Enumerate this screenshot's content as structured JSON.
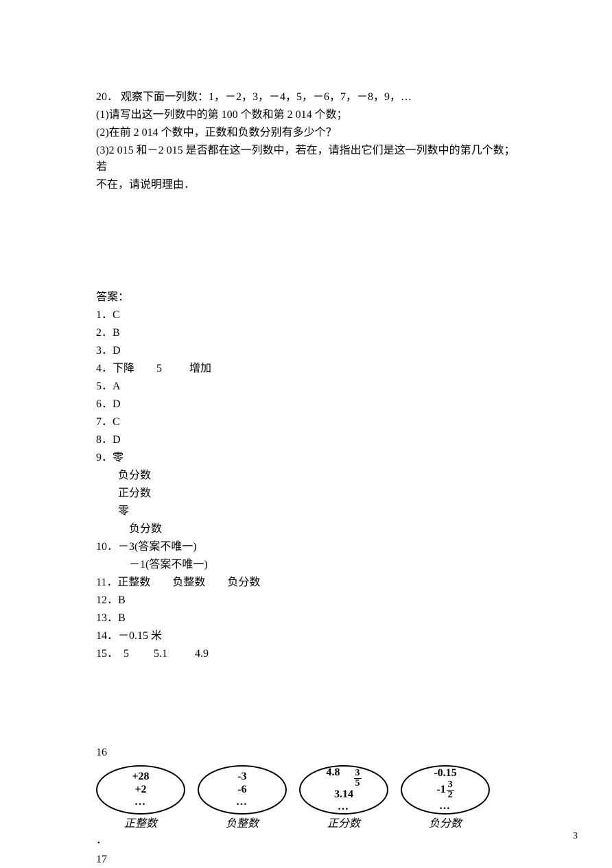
{
  "problem": {
    "num": "20．",
    "intro": "观察下面一列数：1，－2，3，－4，5，－6，7，－8，9，…",
    "part1": "(1)请写出这一列数中的第 100 个数和第 2 014 个数；",
    "part2": "(2)在前 2 014 个数中，正数和负数分别有多少个？",
    "part3a": "(3)2 015 和－2 015 是否都在这一列数中，若在，请指出它们是这一列数中的第几个数；若",
    "part3b": "不在，请说明理由．"
  },
  "answers_heading": "答案：",
  "answers": {
    "a1": "1．C",
    "a2": "2．B",
    "a3": "3．D",
    "a4": "4．下降        5          增加",
    "a5": "5．A",
    "a6": "6．D",
    "a7": "7．C",
    "a8": "8．D",
    "a9": "9．零",
    "a9b": "负分数",
    "a9c": "正分数",
    "a9d": "零",
    "a9e": "负分数",
    "a10": "10．－3(答案不唯一)",
    "a10b": "－1(答案不唯一)",
    "a11": "11．正整数        负整数        负分数",
    "a12": "12．B",
    "a13": "13．B",
    "a14": "14．－0.15 米",
    "a15": "15．  5         5.1          4.9"
  },
  "q16": "16",
  "q17": "17",
  "dot": "．",
  "ellipses": [
    {
      "label": "正整数",
      "lines": [
        "+28",
        "+2",
        "…"
      ]
    },
    {
      "label": "负整数",
      "lines": [
        "-3",
        "-6",
        "…"
      ]
    },
    {
      "label": "正分数",
      "row1_a": "4.8",
      "row1_frac_num": "3",
      "row1_frac_den": "5",
      "row2": "3.14",
      "row3": "…"
    },
    {
      "label": "负分数",
      "row1": "-0.15",
      "row2_prefix": "-1",
      "row2_frac_num": "3",
      "row2_frac_den": "2",
      "row3": "…"
    }
  ],
  "page_number": "3",
  "colors": {
    "text": "#000000",
    "background": "#ffffff",
    "border": "#000000"
  }
}
